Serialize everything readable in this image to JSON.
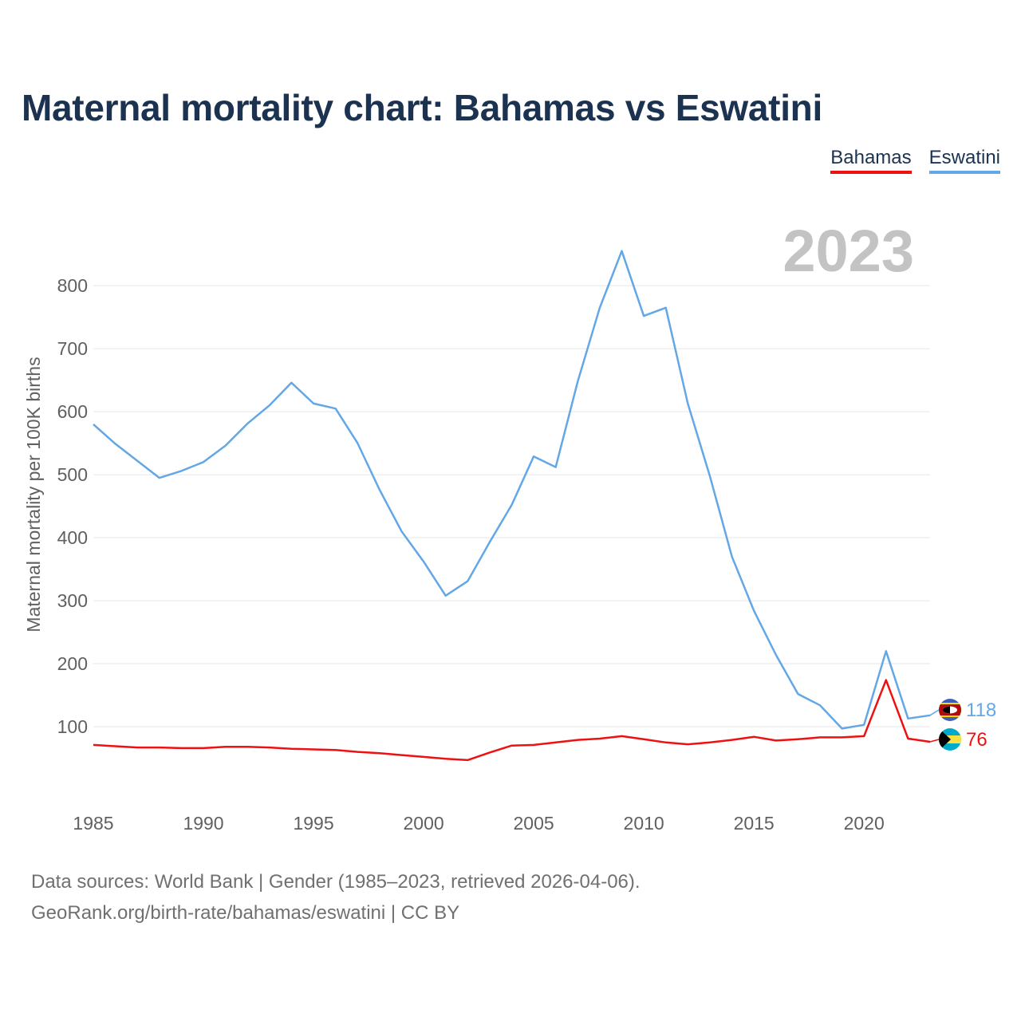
{
  "title": "Maternal mortality chart: Bahamas vs Eswatini",
  "legend": [
    {
      "label": "Bahamas",
      "color": "#ee1111"
    },
    {
      "label": "Eswatini",
      "color": "#63a7e6"
    }
  ],
  "year_label": "2023",
  "footer": {
    "line1": "Data sources: World Bank | Gender (1985–2023, retrieved 2026-04-06).",
    "line2": "GeoRank.org/birth-rate/bahamas/eswatini | CC BY"
  },
  "chart_data": {
    "type": "line",
    "title": "Maternal mortality chart: Bahamas vs Eswatini",
    "xlabel": "",
    "ylabel": "Maternal mortality per 100K births",
    "xlim": [
      1985,
      2023
    ],
    "ylim": [
      0,
      880
    ],
    "yticks": [
      100,
      200,
      300,
      400,
      500,
      600,
      700,
      800
    ],
    "xticks": [
      1985,
      1990,
      1995,
      2000,
      2005,
      2010,
      2015,
      2020
    ],
    "grid": true,
    "x": [
      1985,
      1986,
      1987,
      1988,
      1989,
      1990,
      1991,
      1992,
      1993,
      1994,
      1995,
      1996,
      1997,
      1998,
      1999,
      2000,
      2001,
      2002,
      2003,
      2004,
      2005,
      2006,
      2007,
      2008,
      2009,
      2010,
      2011,
      2012,
      2013,
      2014,
      2015,
      2016,
      2017,
      2018,
      2019,
      2020,
      2021,
      2022,
      2023
    ],
    "series": [
      {
        "name": "Bahamas",
        "color": "#ee1111",
        "end_label": "76",
        "values": [
          71,
          69,
          67,
          67,
          66,
          66,
          68,
          68,
          67,
          65,
          64,
          63,
          60,
          58,
          55,
          52,
          49,
          47,
          59,
          70,
          71,
          75,
          79,
          81,
          85,
          80,
          75,
          72,
          75,
          79,
          84,
          78,
          80,
          83,
          83,
          85,
          174,
          81,
          76
        ]
      },
      {
        "name": "Eswatini",
        "color": "#63a7e6",
        "end_label": "118",
        "values": [
          580,
          549,
          522,
          495,
          506,
          520,
          546,
          581,
          610,
          646,
          613,
          605,
          550,
          476,
          410,
          362,
          308,
          331,
          393,
          452,
          529,
          512,
          648,
          765,
          855,
          752,
          765,
          613,
          498,
          370,
          284,
          214,
          152,
          134,
          97,
          103,
          220,
          113,
          118
        ]
      }
    ]
  }
}
